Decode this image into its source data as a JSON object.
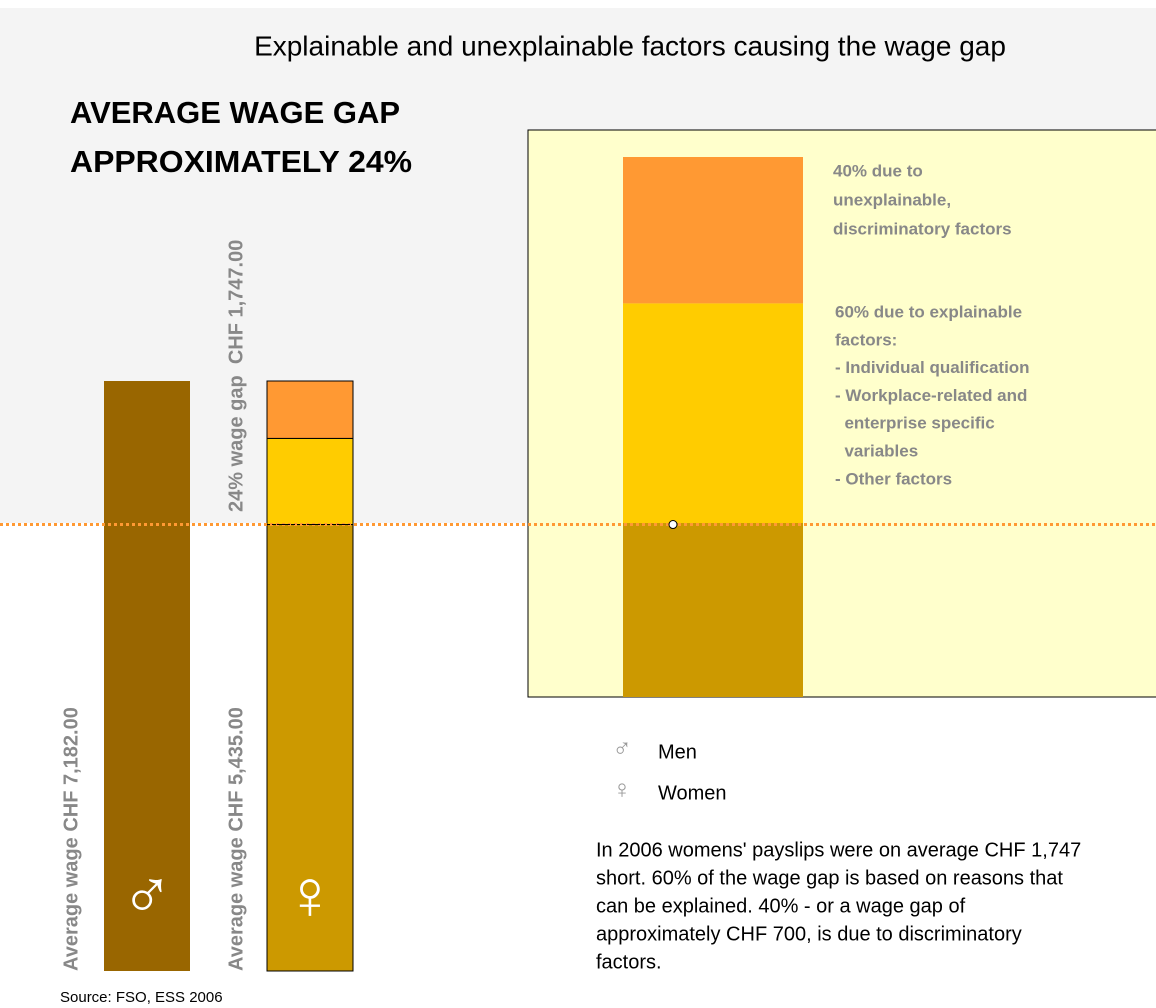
{
  "chart_data": {
    "type": "bar",
    "title": "Explainable and unexplainable factors causing the wage gap",
    "headline": [
      "AVERAGE WAGE GAP",
      "APPROXIMATELY 24%"
    ],
    "series": [
      {
        "name": "Men",
        "symbol": "♂",
        "color": "#996600",
        "values": [
          7182
        ],
        "value_labels": [
          "Average wage CHF 7,182.00"
        ]
      },
      {
        "name": "Women",
        "symbol": "♀",
        "color": "#cc9900",
        "values": [
          5435
        ],
        "value_labels": [
          "Average wage CHF 5,435.00"
        ]
      }
    ],
    "gap": {
      "value": 1747,
      "label": "24% wage gap  CHF 1,747.00",
      "segments": [
        {
          "share": 40,
          "color": "#ff9933",
          "text": [
            "40% due to",
            "unexplainable,",
            "discriminatory factors"
          ]
        },
        {
          "share": 60,
          "color": "#ffcc00",
          "text": [
            "60% due to explainable",
            "factors:",
            "- Individual qualification",
            "- Workplace-related and",
            "  enterprise specific",
            "  variables",
            "- Other factors"
          ]
        }
      ]
    },
    "note": [
      "In 2006 womens' payslips were on average CHF 1,747",
      "short. 60% of the wage gap is based on reasons that",
      "can be explained. 40% - or a wage gap of",
      "approximately CHF 700, is due to discriminatory",
      "factors."
    ],
    "source": "Source: FSO, ESS 2006"
  }
}
